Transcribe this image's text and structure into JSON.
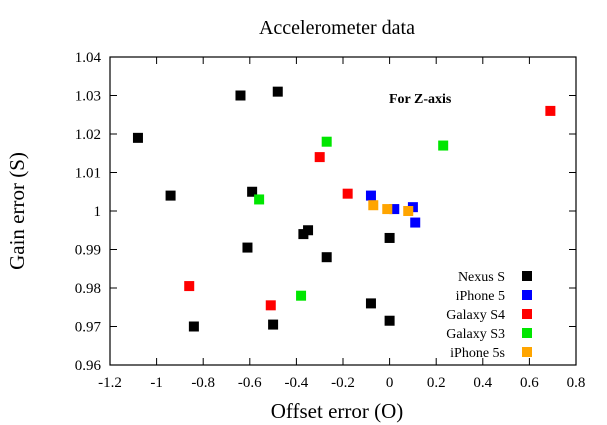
{
  "chart_data": {
    "type": "scatter",
    "title": "Accelerometer data",
    "xlabel": "Offset error (O)",
    "ylabel": "Gain error (S)",
    "annotation": "For Z-axis",
    "xlim": [
      -1.2,
      0.8
    ],
    "ylim": [
      0.96,
      1.04
    ],
    "xticks": [
      "-1.2",
      "-1",
      "-0.8",
      "-0.6",
      "-0.4",
      "-0.2",
      "0",
      "0.2",
      "0.4",
      "0.6",
      "0.8"
    ],
    "yticks": [
      "0.96",
      "0.97",
      "0.98",
      "0.99",
      "1",
      "1.01",
      "1.02",
      "1.03",
      "1.04"
    ],
    "grid": false,
    "legend_position": "bottom-right",
    "series": [
      {
        "name": "Nexus S",
        "color": "#000000",
        "points": [
          [
            -1.08,
            1.019
          ],
          [
            -0.94,
            1.004
          ],
          [
            -0.84,
            0.97
          ],
          [
            -0.64,
            1.03
          ],
          [
            -0.59,
            1.005
          ],
          [
            -0.61,
            0.9905
          ],
          [
            -0.5,
            0.9705
          ],
          [
            -0.48,
            1.031
          ],
          [
            -0.37,
            0.994
          ],
          [
            -0.35,
            0.995
          ],
          [
            -0.27,
            0.988
          ],
          [
            -0.08,
            0.976
          ],
          [
            0.0,
            0.993
          ],
          [
            0.0,
            0.9715
          ]
        ]
      },
      {
        "name": "iPhone 5",
        "color": "#0000ff",
        "points": [
          [
            -0.08,
            1.004
          ],
          [
            0.02,
            1.0005
          ],
          [
            0.1,
            1.001
          ],
          [
            0.11,
            0.997
          ]
        ]
      },
      {
        "name": "Galaxy S4",
        "color": "#ff0000",
        "points": [
          [
            -0.86,
            0.9805
          ],
          [
            -0.51,
            0.9755
          ],
          [
            -0.3,
            1.014
          ],
          [
            -0.18,
            1.0045
          ],
          [
            0.69,
            1.026
          ]
        ]
      },
      {
        "name": "Galaxy S3",
        "color": "#00e600",
        "points": [
          [
            -0.56,
            1.003
          ],
          [
            -0.38,
            0.978
          ],
          [
            -0.27,
            1.018
          ],
          [
            0.23,
            1.017
          ]
        ]
      },
      {
        "name": "iPhone 5s",
        "color": "#ffa500",
        "points": [
          [
            -0.07,
            1.0015
          ],
          [
            -0.01,
            1.0005
          ],
          [
            0.08,
            1.0
          ]
        ]
      }
    ]
  }
}
